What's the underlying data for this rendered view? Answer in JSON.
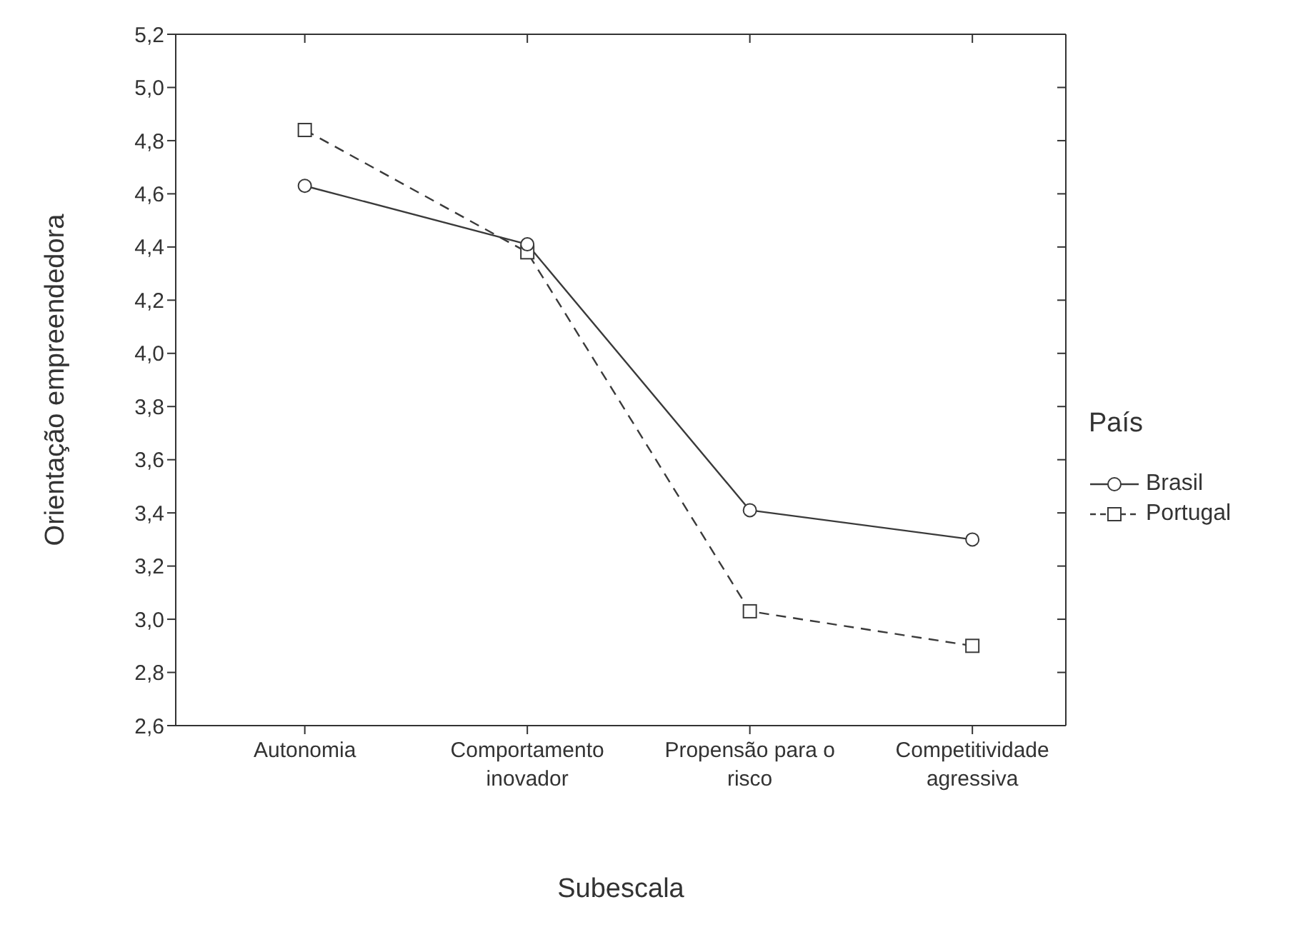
{
  "chart_data": {
    "type": "line",
    "xlabel": "Subescala",
    "ylabel": "Orientação empreendedora",
    "legend_title": "País",
    "categories": [
      "Autonomia",
      "Comportamento inovador",
      "Propensão para o risco",
      "Competitividade agressiva"
    ],
    "series": [
      {
        "name": "Brasil",
        "color": "#3a3a3a",
        "values": [
          4.63,
          4.41,
          3.41,
          3.3
        ],
        "marker": "circle",
        "line_style": "solid"
      },
      {
        "name": "Portugal",
        "color": "#3a3a3a",
        "values": [
          4.84,
          4.38,
          3.03,
          2.9
        ],
        "marker": "square",
        "line_style": "dashed"
      }
    ],
    "ylim": [
      2.6,
      5.2
    ],
    "yticks": [
      {
        "value": 2.6,
        "label": "2,6"
      },
      {
        "value": 2.8,
        "label": "2,8"
      },
      {
        "value": 3.0,
        "label": "3,0"
      },
      {
        "value": 3.2,
        "label": "3,2"
      },
      {
        "value": 3.4,
        "label": "3,4"
      },
      {
        "value": 3.6,
        "label": "3,6"
      },
      {
        "value": 3.8,
        "label": "3,8"
      },
      {
        "value": 4.0,
        "label": "4,0"
      },
      {
        "value": 4.2,
        "label": "4,2"
      },
      {
        "value": 4.4,
        "label": "4,4"
      },
      {
        "value": 4.6,
        "label": "4,6"
      },
      {
        "value": 4.8,
        "label": "4,8"
      },
      {
        "value": 5.0,
        "label": "5,0"
      },
      {
        "value": 5.2,
        "label": "5,2"
      }
    ],
    "grid": false,
    "legend": "right"
  }
}
